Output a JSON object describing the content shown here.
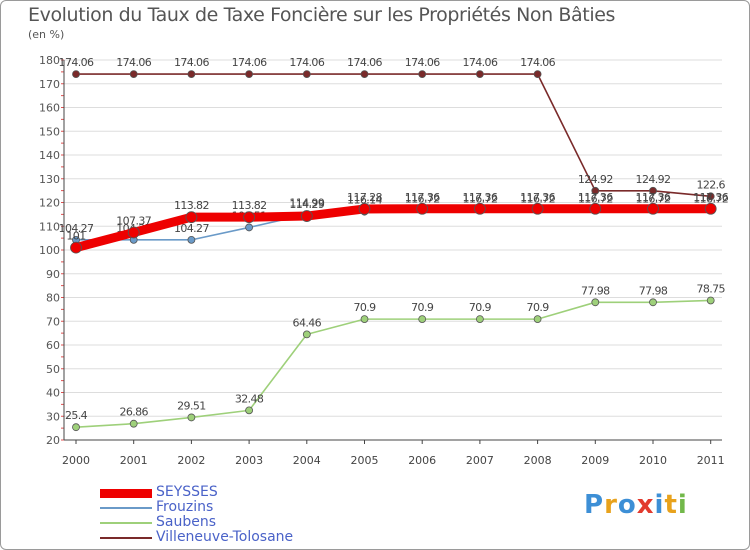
{
  "title": "Evolution du Taux de Taxe Foncière sur les Propriétés Non Bâties",
  "subtitle": "(en %)",
  "logo": {
    "text": "Proxiti",
    "colors": [
      "#3d8fd6",
      "#e8a21c",
      "#3d8fd6",
      "#e23a2e",
      "#3d8fd6",
      "#e8a21c",
      "#72b84a"
    ]
  },
  "chart_data": {
    "type": "line",
    "x": [
      "2000",
      "2001",
      "2002",
      "2003",
      "2004",
      "2005",
      "2006",
      "2007",
      "2008",
      "2009",
      "2010",
      "2011"
    ],
    "ylim": [
      20,
      180
    ],
    "yticks": [
      "20",
      "30",
      "40",
      "50",
      "60",
      "70",
      "80",
      "90",
      "100",
      "110",
      "120",
      "130",
      "140",
      "150",
      "160",
      "170",
      "180"
    ],
    "grid": "horizontal",
    "legend_position": "bottom-left",
    "series": [
      {
        "name": "Villeneuve-Tolosane",
        "color": "#7a2a2a",
        "values": [
          174.06,
          174.06,
          174.06,
          174.06,
          174.06,
          174.06,
          174.06,
          174.06,
          174.06,
          124.92,
          124.92,
          122.6
        ],
        "labels": [
          "174.06",
          "174.06",
          "174.06",
          "174.06",
          "174.06",
          "174.06",
          "174.06",
          "174.06",
          "174.06",
          "124.92",
          "124.92",
          "122.6"
        ]
      },
      {
        "name": "Frouzins",
        "color": "#6a9ac8",
        "values": [
          104.27,
          104.27,
          104.27,
          109.51,
          114.99,
          116.14,
          116.72,
          116.72,
          116.72,
          116.72,
          116.72,
          116.72
        ],
        "labels": [
          "104.27",
          "104.27",
          "104.27",
          "109.51",
          "114.99",
          "116.14",
          "116.72",
          "116.72",
          "116.72",
          "116.72",
          "116.72",
          "116.72"
        ]
      },
      {
        "name": "Saubens",
        "color": "#9ed07a",
        "values": [
          25.4,
          26.86,
          29.51,
          32.48,
          64.46,
          70.9,
          70.9,
          70.9,
          70.9,
          77.98,
          77.98,
          78.75
        ],
        "labels": [
          "25.4",
          "26.86",
          "29.51",
          "32.48",
          "64.46",
          "70.9",
          "70.9",
          "70.9",
          "70.9",
          "77.98",
          "77.98",
          "78.75"
        ]
      },
      {
        "name": "SEYSSES",
        "color": "#ee0000",
        "values": [
          101,
          107.37,
          113.82,
          113.82,
          114.29,
          117.28,
          117.36,
          117.36,
          117.36,
          117.36,
          117.36,
          117.36
        ],
        "labels": [
          "101",
          "107.37",
          "113.82",
          "113.82",
          "114.29",
          "117.28",
          "117.36",
          "117.36",
          "117.36",
          "117.36",
          "117.36",
          "117.36"
        ]
      }
    ],
    "legend_order": [
      "SEYSSES",
      "Frouzins",
      "Saubens",
      "Villeneuve-Tolosane"
    ]
  }
}
